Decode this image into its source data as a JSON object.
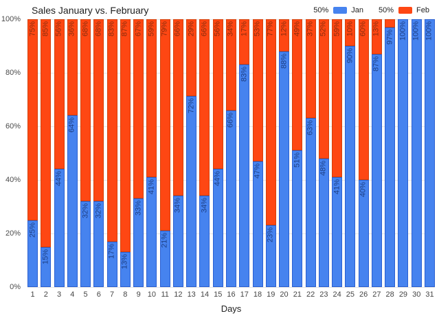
{
  "title": "Sales January vs. February",
  "legend": {
    "items": [
      {
        "value": "50%",
        "label": "Jan",
        "color": "#4683ef"
      },
      {
        "value": "50%",
        "label": "Feb",
        "color": "#fe4713"
      }
    ]
  },
  "chart_data": {
    "type": "bar",
    "variant": "stacked-100-percent",
    "title": "Sales January vs. February",
    "xlabel": "Days",
    "ylabel": "",
    "ylim": [
      0,
      100
    ],
    "grid": true,
    "legend_position": "top-right",
    "y_ticks": [
      "100%",
      "80%",
      "60%",
      "40%",
      "20%",
      "0%"
    ],
    "categories": [
      "1",
      "2",
      "3",
      "4",
      "5",
      "6",
      "7",
      "8",
      "9",
      "10",
      "11",
      "12",
      "13",
      "14",
      "15",
      "16",
      "17",
      "18",
      "19",
      "20",
      "21",
      "22",
      "23",
      "24",
      "25",
      "26",
      "27",
      "28",
      "29",
      "30",
      "31"
    ],
    "series": [
      {
        "name": "Jan",
        "color": "#4683ef",
        "border_color": "#2a5fd0",
        "label_color": "#1d3f85",
        "values": [
          25,
          15,
          44,
          64,
          32,
          32,
          17,
          13,
          33,
          41,
          21,
          34,
          72,
          34,
          44,
          66,
          83,
          47,
          23,
          88,
          51,
          63,
          48,
          41,
          90,
          40,
          87,
          97,
          100,
          100,
          100
        ],
        "labels": [
          "25%",
          "15%",
          "44%",
          "64%",
          "32%",
          "32%",
          "17%",
          "13%",
          "33%",
          "41%",
          "21%",
          "34%",
          "72%",
          "34%",
          "44%",
          "66%",
          "83%",
          "47%",
          "23%",
          "88%",
          "51%",
          "63%",
          "48%",
          "41%",
          "90%",
          "40%",
          "87%",
          "97%",
          "100%",
          "100%",
          "100%"
        ]
      },
      {
        "name": "Feb",
        "color": "#fe4713",
        "border_color": "#d43f08",
        "label_color": "#8a2d0d",
        "values": [
          75,
          85,
          56,
          36,
          68,
          68,
          83,
          87,
          67,
          59,
          79,
          66,
          29,
          66,
          56,
          34,
          17,
          53,
          77,
          12,
          49,
          37,
          52,
          59,
          10,
          60,
          13,
          3,
          0,
          0,
          0
        ],
        "labels": [
          "75%",
          "85%",
          "56%",
          "36%",
          "68%",
          "68%",
          "83%",
          "87%",
          "67%",
          "59%",
          "79%",
          "66%",
          "29%",
          "66%",
          "56%",
          "34%",
          "17%",
          "53%",
          "77%",
          "12%",
          "49%",
          "37%",
          "52%",
          "59%",
          "10%",
          "60%",
          "13%",
          "",
          "",
          "",
          ""
        ]
      }
    ]
  }
}
